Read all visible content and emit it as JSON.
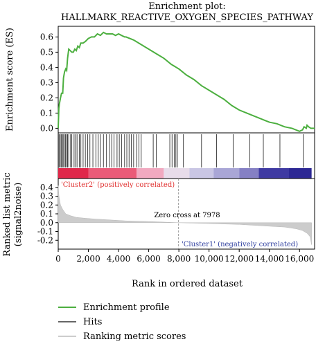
{
  "chart_data": {
    "type": "line",
    "title": "Enrichment plot:",
    "subtitle": "HALLMARK_REACTIVE_OXYGEN_SPECIES_PATHWAY",
    "xlabel": "Rank in ordered dataset",
    "xlim": [
      0,
      17000
    ],
    "x_ticks": [
      0,
      2000,
      4000,
      6000,
      8000,
      10000,
      12000,
      14000,
      16000
    ],
    "x_tick_labels": [
      "0",
      "2,000",
      "4,000",
      "6,000",
      "8,000",
      "10,000",
      "12,000",
      "14,000",
      "16,000"
    ],
    "es_panel": {
      "ylabel": "Enrichment score (ES)",
      "ylim": [
        -0.03,
        0.67
      ],
      "y_ticks": [
        0.0,
        0.1,
        0.2,
        0.3,
        0.4,
        0.5,
        0.6
      ],
      "y_tick_labels": [
        "0.0",
        "0.1",
        "0.2",
        "0.3",
        "0.4",
        "0.5",
        "0.6"
      ],
      "series": [
        {
          "name": "Enrichment profile",
          "color": "#4caf3f",
          "x": [
            0,
            40,
            80,
            150,
            220,
            300,
            350,
            420,
            500,
            560,
            620,
            700,
            800,
            900,
            1000,
            1100,
            1200,
            1300,
            1400,
            1500,
            1650,
            1800,
            2000,
            2200,
            2400,
            2600,
            2800,
            3000,
            3200,
            3400,
            3600,
            3800,
            4000,
            4200,
            4400,
            4500,
            5000,
            5500,
            6000,
            6500,
            7000,
            7500,
            8000,
            8500,
            9000,
            9500,
            10000,
            10500,
            11000,
            11500,
            12000,
            12500,
            13000,
            13500,
            14000,
            14500,
            15000,
            15500,
            16000,
            16200,
            16300,
            16450,
            16500,
            16600,
            16750,
            17000
          ],
          "y": [
            0.0,
            0.13,
            0.16,
            0.2,
            0.23,
            0.23,
            0.33,
            0.37,
            0.39,
            0.38,
            0.46,
            0.52,
            0.51,
            0.5,
            0.5,
            0.52,
            0.51,
            0.54,
            0.53,
            0.56,
            0.56,
            0.57,
            0.59,
            0.6,
            0.6,
            0.62,
            0.61,
            0.63,
            0.62,
            0.62,
            0.62,
            0.61,
            0.62,
            0.61,
            0.6,
            0.6,
            0.58,
            0.55,
            0.52,
            0.49,
            0.46,
            0.42,
            0.39,
            0.35,
            0.32,
            0.28,
            0.25,
            0.22,
            0.19,
            0.15,
            0.12,
            0.1,
            0.08,
            0.06,
            0.04,
            0.03,
            0.01,
            0.0,
            -0.02,
            -0.01,
            0.01,
            0.0,
            0.02,
            0.01,
            0.0,
            0.0
          ]
        }
      ]
    },
    "hits_panel": {
      "name": "Hits",
      "color": "#444444",
      "hit_ranks": [
        60,
        130,
        200,
        270,
        330,
        400,
        480,
        560,
        620,
        700,
        820,
        900,
        1050,
        1150,
        1250,
        1400,
        1500,
        1650,
        1800,
        1950,
        2100,
        2300,
        2500,
        2650,
        2800,
        3000,
        3200,
        3400,
        3550,
        3700,
        3900,
        4050,
        4200,
        4400,
        4550,
        4700,
        4850,
        5000,
        5200,
        5350,
        5500,
        6300,
        6500,
        7400,
        7550,
        7700,
        7800,
        7900,
        8300,
        9500,
        10500,
        11600,
        12700,
        13600,
        14700,
        16250
      ]
    },
    "ranking_panel": {
      "name": "Ranking metric scores",
      "color": "#cccccc",
      "ylabel": "Ranked list metric (signal2noise)",
      "ylim": [
        -0.3,
        0.5
      ],
      "y_ticks": [
        -0.2,
        -0.1,
        0.0,
        0.1,
        0.2,
        0.3,
        0.4
      ],
      "y_tick_labels": [
        "-0.2",
        "-0.1",
        "0.0",
        "0.1",
        "0.2",
        "0.3",
        "0.4"
      ],
      "zero_cross": 7978,
      "zero_cross_label": "Zero cross at 7978",
      "positive_label": "'Cluster2' (positively correlated)",
      "negative_label": "'Cluster1' (negatively correlated)",
      "positive_label_color": "#e0302f",
      "negative_label_color": "#2f3f9f",
      "x": [
        0,
        50,
        150,
        300,
        500,
        800,
        1200,
        1800,
        2500,
        3500,
        4500,
        5500,
        6500,
        7500,
        7978,
        9000,
        10000,
        11000,
        12000,
        13000,
        14000,
        15000,
        15800,
        16200,
        16500,
        16700,
        16800
      ],
      "y": [
        0.42,
        0.3,
        0.2,
        0.15,
        0.1,
        0.08,
        0.06,
        0.05,
        0.04,
        0.03,
        0.02,
        0.015,
        0.01,
        0.003,
        0.0,
        -0.005,
        -0.01,
        -0.015,
        -0.02,
        -0.03,
        -0.04,
        -0.05,
        -0.07,
        -0.09,
        -0.12,
        -0.16,
        -0.25
      ]
    },
    "color_bar": {
      "segments": [
        {
          "end": 2000,
          "color": "#e0284a"
        },
        {
          "end": 5200,
          "color": "#ea5b78"
        },
        {
          "end": 7000,
          "color": "#f1a9c0"
        },
        {
          "end": 8700,
          "color": "#e8dcea"
        },
        {
          "end": 10300,
          "color": "#c9c6e4"
        },
        {
          "end": 12000,
          "color": "#a9a6d6"
        },
        {
          "end": 13300,
          "color": "#8580c4"
        },
        {
          "end": 15300,
          "color": "#3f3aa2"
        },
        {
          "end": 16800,
          "color": "#2d2894"
        }
      ]
    },
    "legend": {
      "placement": "bottom",
      "entries": [
        {
          "label": "Enrichment profile",
          "color": "#4caf3f"
        },
        {
          "label": "Hits",
          "color": "#666666"
        },
        {
          "label": "Ranking metric scores",
          "color": "#cccccc"
        }
      ]
    }
  }
}
